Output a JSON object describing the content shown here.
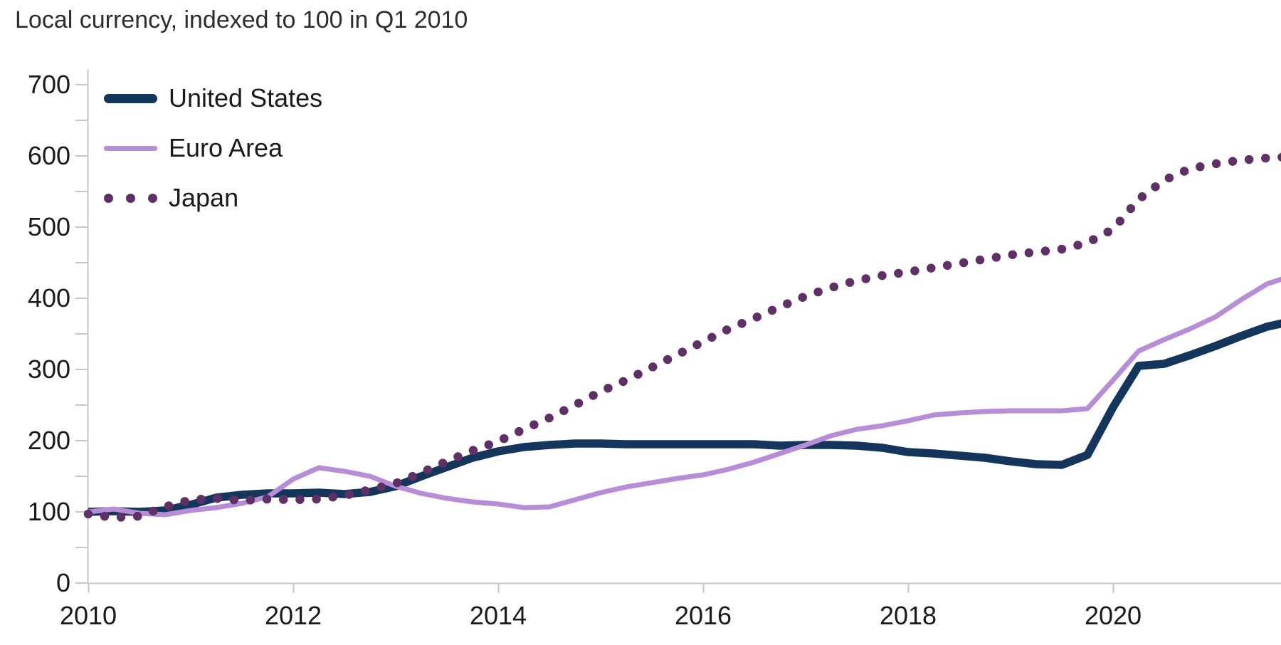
{
  "title": "Local currency, indexed to 100 in Q1 2010",
  "legend": {
    "items": [
      {
        "label": "United States"
      },
      {
        "label": "Euro Area"
      },
      {
        "label": "Japan"
      }
    ]
  },
  "colors": {
    "united_states": "#15365c",
    "euro_area": "#b88dd8",
    "japan": "#5e3066",
    "axis": "#c8c8c8",
    "tick": "#c8c8c8",
    "label_text": "#1a1a1a",
    "title_text": "#2d2d2d",
    "background": "#ffffff"
  },
  "chart_data": {
    "type": "line",
    "title": "Local currency, indexed to 100 in Q1 2010",
    "x_frequency": "quarterly",
    "x_start": "2010-Q1",
    "x_end": "2021-Q4",
    "x_tick_labels": [
      "2010",
      "2012",
      "2014",
      "2016",
      "2018",
      "2020"
    ],
    "y_ticks": [
      0,
      100,
      200,
      300,
      400,
      500,
      600,
      700
    ],
    "y_minor_tick_step": 50,
    "ylim": [
      0,
      700
    ],
    "grid": false,
    "legend_position": "top-left-inside",
    "series": [
      {
        "name": "United States",
        "style": "solid",
        "stroke_width": 11.5,
        "color": "#15365c",
        "values": [
          100,
          101,
          100,
          102,
          110,
          120,
          124,
          126,
          126,
          127,
          125,
          128,
          136,
          150,
          163,
          176,
          185,
          191,
          194,
          196,
          196,
          195,
          195,
          195,
          195,
          195,
          195,
          193,
          194,
          194,
          193,
          190,
          184,
          182,
          179,
          176,
          171,
          167,
          166,
          180,
          247,
          305,
          308,
          320,
          333,
          347,
          360,
          368
        ]
      },
      {
        "name": "Euro Area",
        "style": "solid",
        "stroke_width": 7,
        "color": "#b88dd8",
        "values": [
          100,
          104,
          98,
          96,
          102,
          106,
          112,
          121,
          146,
          162,
          157,
          150,
          136,
          126,
          119,
          114,
          111,
          106,
          107,
          117,
          127,
          135,
          141,
          147,
          152,
          160,
          170,
          182,
          194,
          207,
          216,
          221,
          228,
          236,
          239,
          241,
          242,
          242,
          242,
          245,
          285,
          326,
          342,
          357,
          374,
          398,
          420,
          432
        ]
      },
      {
        "name": "Japan",
        "style": "dotted",
        "stroke_width": 12.5,
        "color": "#5e3066",
        "values": [
          97,
          92,
          94,
          107,
          117,
          119,
          116,
          118,
          117,
          118,
          123,
          131,
          140,
          155,
          171,
          186,
          199,
          216,
          232,
          250,
          269,
          285,
          303,
          321,
          339,
          357,
          372,
          388,
          403,
          415,
          425,
          432,
          437,
          443,
          449,
          455,
          461,
          465,
          469,
          478,
          497,
          539,
          566,
          582,
          589,
          594,
          597,
          599
        ]
      }
    ]
  }
}
